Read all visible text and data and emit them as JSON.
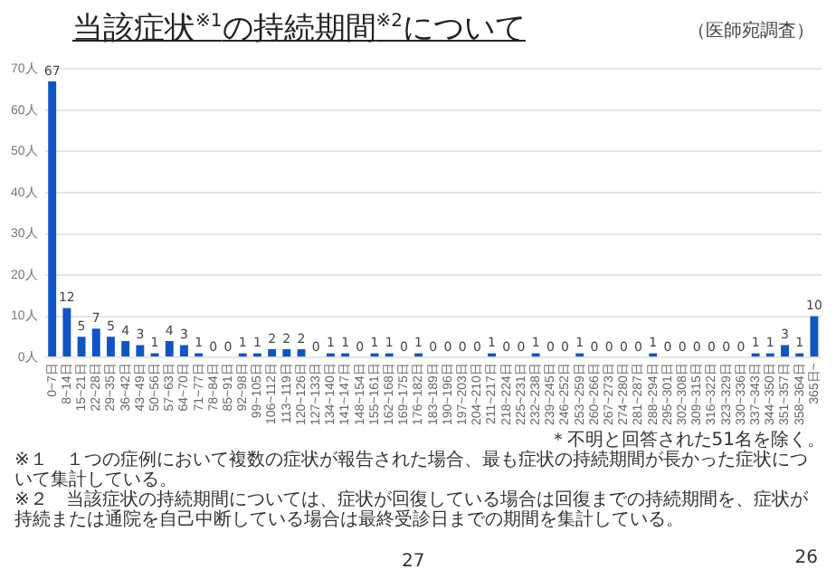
{
  "chart_data": {
    "type": "bar",
    "title": "当該症状$^{※1}$の持続期間$^{※2}$について",
    "subtitle": "（医師宛調査）",
    "categories": [
      "0~7日",
      "8~14日",
      "15~21日",
      "22~28日",
      "29~35日",
      "36~42日",
      "43~49日",
      "50~56日",
      "57~63日",
      "64~70日",
      "71~77日",
      "78~84日",
      "85~91日",
      "92~98日",
      "99~105日",
      "106~112日",
      "113~119日",
      "120~126日",
      "127~133日",
      "134~140日",
      "141~147日",
      "148~154日",
      "155~161日",
      "162~168日",
      "169~175日",
      "176~182日",
      "183~189日",
      "190~196日",
      "197~203日",
      "204~210日",
      "211~217日",
      "218~224日",
      "225~231日",
      "232~238日",
      "239~245日",
      "246~252日",
      "253~259日",
      "260~266日",
      "267~273日",
      "274~280日",
      "281~287日",
      "288~294日",
      "295~301日",
      "302~308日",
      "309~315日",
      "316~322日",
      "323~329日",
      "330~336日",
      "337~343日",
      "344~350日",
      "351~357日",
      "358~364日",
      "365日~"
    ],
    "values": [
      67,
      12,
      5,
      7,
      5,
      4,
      3,
      1,
      4,
      3,
      1,
      0,
      0,
      1,
      1,
      2,
      2,
      2,
      0,
      1,
      1,
      0,
      1,
      1,
      0,
      1,
      0,
      0,
      0,
      0,
      1,
      0,
      0,
      1,
      0,
      0,
      1,
      0,
      0,
      0,
      0,
      1,
      0,
      0,
      0,
      0,
      0,
      0,
      1,
      1,
      3,
      1,
      10
    ],
    "color": "#1155c0",
    "ylim": [
      0,
      70
    ],
    "yticks": [
      {
        "value": 0,
        "label": "0人"
      },
      {
        "value": 10,
        "label": "10人"
      },
      {
        "value": 20,
        "label": "20人"
      },
      {
        "value": 30,
        "label": "30人"
      },
      {
        "value": 40,
        "label": "40人"
      },
      {
        "value": 50,
        "label": "50人"
      },
      {
        "value": 60,
        "label": "60人"
      },
      {
        "value": 70,
        "label": "70人"
      }
    ],
    "grid": "y",
    "data_labels": true,
    "annotations": [
      "＊不明と回答された51名を除く。",
      "※１　１つの症例において複数の症状が報告された場合、最も症状の持続期間が長かった症状について集計している。",
      "※２　当該症状の持続期間については、症状が回復している場合は回復までの持続期間を、症状が持続または通院を自己中断している場合は最終受診日までの期間を集計している。",
      "27",
      "26"
    ]
  }
}
